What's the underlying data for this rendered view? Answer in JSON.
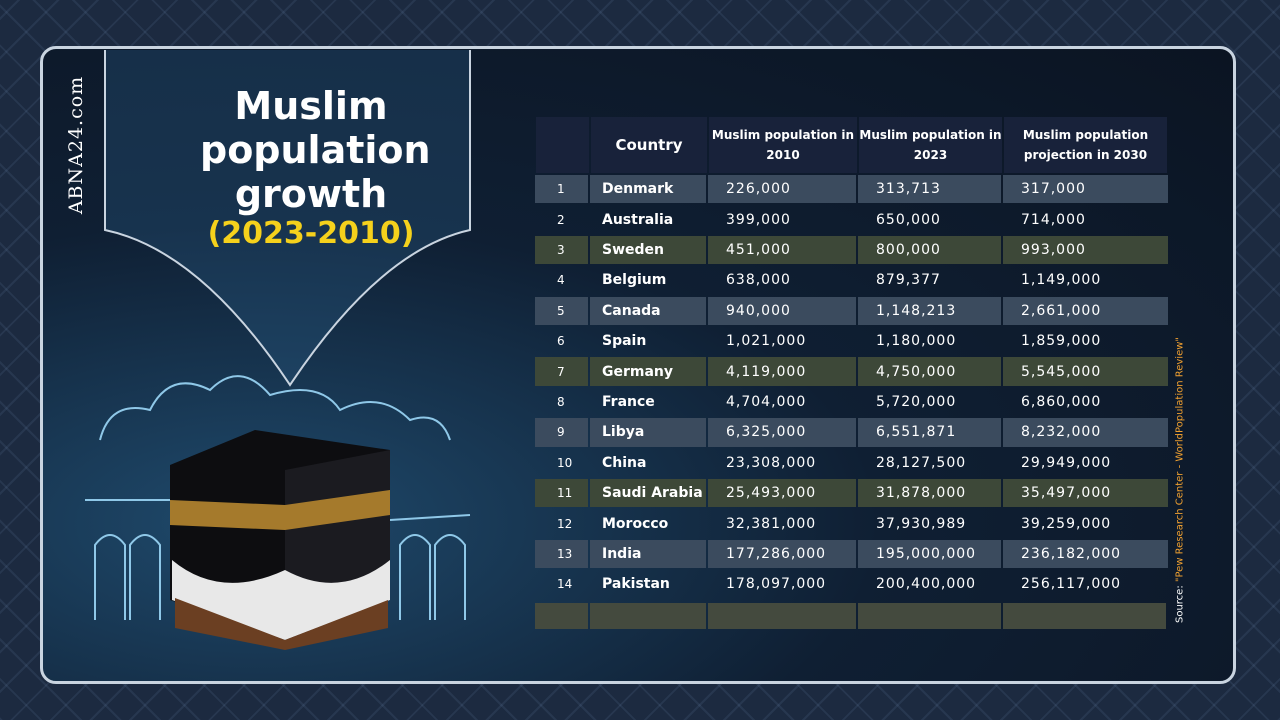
{
  "brand": "ABNA24.com",
  "header": {
    "title": "Muslim population growth",
    "subtitle": "(2023-2010)"
  },
  "source": {
    "label": "Source:",
    "text": "\"Pew Research Center - WorldPopulation Review\""
  },
  "table": {
    "columns": [
      "Country",
      "Muslim population in 2010",
      "Muslim population in 2023",
      "Muslim population projection in 2030"
    ],
    "rows": [
      [
        "1",
        "Denmark",
        "226,000",
        "313,713",
        "317,000"
      ],
      [
        "2",
        "Australia",
        "399,000",
        "650,000",
        "714,000"
      ],
      [
        "3",
        "Sweden",
        "451,000",
        "800,000",
        "993,000"
      ],
      [
        "4",
        "Belgium",
        "638,000",
        "879,377",
        "1,149,000"
      ],
      [
        "5",
        "Canada",
        "940,000",
        "1,148,213",
        "2,661,000"
      ],
      [
        "6",
        "Spain",
        "1,021,000",
        "1,180,000",
        "1,859,000"
      ],
      [
        "7",
        "Germany",
        "4,119,000",
        "4,750,000",
        "5,545,000"
      ],
      [
        "8",
        "France",
        "4,704,000",
        "5,720,000",
        "6,860,000"
      ],
      [
        "9",
        "Libya",
        "6,325,000",
        "6,551,871",
        "8,232,000"
      ],
      [
        "10",
        "China",
        "23,308,000",
        "28,127,500",
        "29,949,000"
      ],
      [
        "11",
        "Saudi Arabia",
        "25,493,000",
        "31,878,000",
        "35,497,000"
      ],
      [
        "12",
        "Morocco",
        "32,381,000",
        "37,930,989",
        "39,259,000"
      ],
      [
        "13",
        "India",
        "177,286,000",
        "195,000,000",
        "236,182,000"
      ],
      [
        "14",
        "Pakistan",
        "178,097,000",
        "200,400,000",
        "256,117,000"
      ]
    ]
  }
}
